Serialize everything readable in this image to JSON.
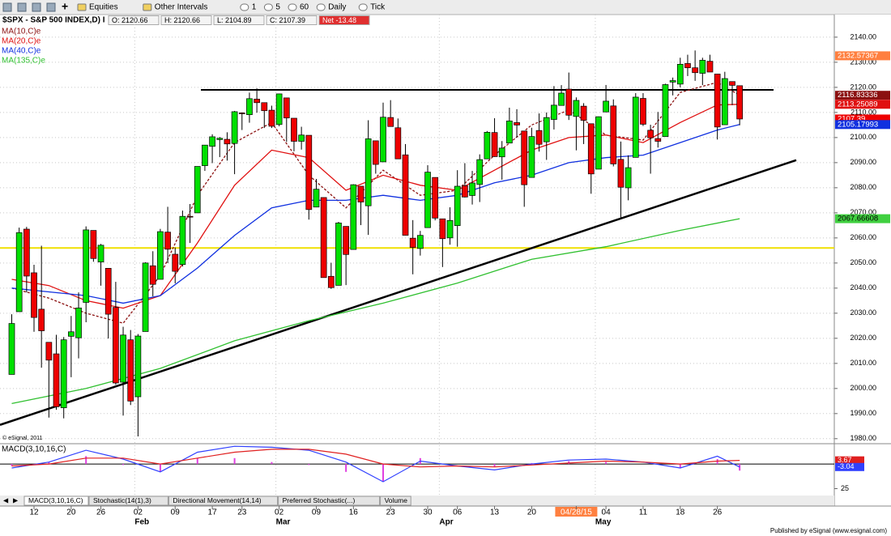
{
  "toolbar": {
    "items": [
      "Equities",
      "Other Intervals",
      "1",
      "5",
      "60",
      "Daily",
      "Tick"
    ]
  },
  "header": {
    "symbol": "$SPX - S&P 500 INDEX,D) I",
    "open": "O: 2120.66",
    "high": "H: 2120.66",
    "low": "L: 2104.89",
    "close": "C: 2107.39",
    "net": "Net -13.48"
  },
  "chart_data": {
    "type": "candlestick",
    "categories": [
      null,
      null,
      null,
      "12",
      null,
      null,
      null,
      null,
      "20",
      null,
      null,
      null,
      "26",
      null,
      null,
      null,
      null,
      "02",
      null,
      null,
      null,
      null,
      "09",
      null,
      null,
      null,
      null,
      "17",
      null,
      null,
      null,
      "23",
      null,
      null,
      null,
      null,
      "02",
      null,
      null,
      null,
      null,
      "09",
      null,
      null,
      null,
      null,
      "16",
      null,
      null,
      null,
      null,
      "23",
      null,
      null,
      null,
      null,
      "30",
      null,
      null,
      null,
      "06",
      null,
      null,
      null,
      null,
      "13",
      null,
      null,
      null,
      null,
      "20",
      null,
      null,
      null,
      null,
      null,
      "04/28/15",
      null,
      null,
      null,
      "04",
      null,
      null,
      null,
      null,
      "11",
      null,
      null,
      null,
      null,
      "18",
      null,
      null,
      null,
      null,
      "26",
      null,
      null,
      null
    ],
    "month_labels": [
      null,
      null,
      null,
      null,
      null,
      null,
      null,
      null,
      null,
      null,
      null,
      null,
      null,
      null,
      null,
      null,
      null,
      "Feb",
      null,
      null,
      null,
      null,
      null,
      null,
      null,
      null,
      null,
      null,
      null,
      null,
      null,
      null,
      null,
      null,
      null,
      null,
      "Mar",
      null,
      null,
      null,
      null,
      null,
      null,
      null,
      null,
      null,
      null,
      null,
      null,
      null,
      null,
      null,
      null,
      null,
      null,
      null,
      null,
      null,
      "Apr",
      null,
      null,
      null,
      null,
      null,
      null,
      null,
      null,
      null,
      null,
      null,
      null,
      null,
      null,
      null,
      null,
      null,
      null,
      null,
      null,
      "May",
      null,
      null,
      null,
      null,
      null,
      null,
      null,
      null,
      null,
      null,
      null,
      null,
      null,
      null,
      null,
      null,
      null,
      null,
      null
    ],
    "open": [
      2005.6,
      2030.6,
      2063.5,
      2046.1,
      2031.6,
      2018.4,
      2013.8,
      1992.3,
      2020.8,
      2020.2,
      2034.3,
      2062.98,
      2050.4,
      2047.9,
      2032.3,
      2002.5,
      2019.4,
      1996.7,
      2022.7,
      2048.9,
      2043.5,
      2062.3,
      2053.5,
      2049.4,
      2068.6,
      2069.98,
      2088.8,
      2096.5,
      2099.2,
      2099.3,
      2097.65,
      2109.8,
      2109.1,
      2115.3,
      2113.9,
      2110.9,
      2105.2,
      2115.8,
      2107.7,
      2098.5,
      2100.9,
      2072.3,
      2076.1,
      2044.7,
      2041.1,
      2064.6,
      2055.4,
      2080.6,
      2072.8,
      2098.7,
      2090.3,
      2107.99,
      2103.9,
      2093.1,
      2059.9,
      2055.8,
      2064.1,
      2084.1,
      2067.6,
      2060.0,
      2064.9,
      2080.8,
      2076.9,
      2081.3,
      2091.5,
      2102.0,
      2092.3,
      2097.8,
      2105.96,
      2102.6,
      2084.1,
      2102.8,
      2098.3,
      2107.2,
      2112.8,
      2119.3,
      2108.4,
      2112.5,
      2105.5,
      2087.4,
      2110.2,
      2112.6,
      2091.3,
      2079.96,
      2092.1,
      2115.6,
      2102.9,
      2099.6,
      2100.4,
      2122.1,
      2121.3,
      2129.5,
      2127.8,
      2125.6,
      2130.4,
      2125.3,
      2105.1,
      2122.3,
      2120.66
    ],
    "high": [
      2029.6,
      2064.1,
      2064.4,
      2049.3,
      2056.9,
      2018.4,
      2021.4,
      2020.5,
      2028.9,
      2038.3,
      2064.6,
      2062.98,
      2057.6,
      2047.9,
      2042.5,
      2024.6,
      2023.3,
      2021.7,
      2050.3,
      2054.7,
      2063.6,
      2072.4,
      2056.2,
      2070.9,
      2073.5,
      2088.5,
      2097.0,
      2101.3,
      2100.2,
      2102.1,
      2110.6,
      2110.05,
      2117.9,
      2119.6,
      2113.9,
      2112.7,
      2117.5,
      2115.8,
      2107.7,
      2104.3,
      2100.9,
      2083.5,
      2076.1,
      2050.1,
      2066.4,
      2064.6,
      2081.4,
      2080.6,
      2106.9,
      2098.7,
      2113.9,
      2114.9,
      2107.6,
      2097.4,
      2067.1,
      2062.8,
      2088.97,
      2084.1,
      2067.6,
      2072.2,
      2086.99,
      2089.8,
      2086.7,
      2093.3,
      2102.6,
      2107.7,
      2098.6,
      2111.9,
      2111.3,
      2102.6,
      2103.9,
      2109.6,
      2109.98,
      2120.5,
      2120.9,
      2125.9,
      2116.0,
      2113.7,
      2105.5,
      2108.4,
      2120.95,
      2115.2,
      2098.4,
      2092.9,
      2117.7,
      2117.7,
      2105.1,
      2110.2,
      2121.45,
      2123.9,
      2131.8,
      2133.0,
      2134.7,
      2131.8,
      2133.0,
      2125.3,
      2126.2,
      2122.3,
      2120.66
    ],
    "low": [
      2005.6,
      2030.6,
      2038.3,
      2022.6,
      2008.3,
      1988.4,
      1991.5,
      1988.1,
      2004.5,
      2012.0,
      2026.4,
      2050.5,
      2040.97,
      2019.9,
      2001.5,
      1989.2,
      1993.4,
      1980.9,
      2022.7,
      2036.7,
      2043.5,
      2049.97,
      2041.9,
      2048.6,
      2057.99,
      2069.98,
      2086.7,
      2089.8,
      2092.2,
      2090.8,
      2085.4,
      2103.0,
      2105.9,
      2109.9,
      2103.8,
      2103.8,
      2104.5,
      2098.3,
      2094.5,
      2095.2,
      2067.3,
      2072.2,
      2044.2,
      2039.7,
      2041.1,
      2041.2,
      2055.4,
      2065.1,
      2061.2,
      2085.6,
      2090.3,
      2104.4,
      2091.5,
      2061.05,
      2045.5,
      2052.96,
      2064.1,
      2067.0,
      2048.4,
      2057.3,
      2056.5,
      2076.1,
      2073.3,
      2074.3,
      2091.5,
      2092.3,
      2083.2,
      2097.8,
      2100.0,
      2072.4,
      2084.1,
      2094.4,
      2091.1,
      2103.2,
      2112.8,
      2107.0,
      2094.9,
      2097.4,
      2077.6,
      2087.4,
      2110.2,
      2088.5,
      2067.9,
      2074.99,
      2092.1,
      2104.6,
      2085.6,
      2096.0,
      2100.4,
      2116.8,
      2120.0,
      2124.5,
      2122.6,
      2120.9,
      2126.1,
      2099.2,
      2105.1,
      2112.9,
      2104.89
    ],
    "close": [
      2025.9,
      2062.1,
      2044.8,
      2028.3,
      2023.0,
      2011.3,
      1992.7,
      2019.4,
      2022.6,
      2032.1,
      2063.2,
      2051.8,
      2057.1,
      2029.6,
      2002.2,
      2021.3,
      1994.99,
      2020.9,
      2050.0,
      2041.5,
      2062.5,
      2055.5,
      2046.7,
      2068.6,
      2068.5,
      2088.5,
      2096.99,
      2100.3,
      2099.7,
      2097.45,
      2110.3,
      2109.7,
      2115.5,
      2113.9,
      2110.7,
      2104.5,
      2117.4,
      2107.8,
      2098.5,
      2101.0,
      2071.3,
      2079.4,
      2044.2,
      2040.2,
      2065.95,
      2053.4,
      2081.2,
      2074.3,
      2099.5,
      2089.3,
      2108.1,
      2104.4,
      2091.5,
      2061.05,
      2056.2,
      2061.02,
      2086.2,
      2067.9,
      2059.7,
      2066.96,
      2080.6,
      2076.3,
      2081.9,
      2091.2,
      2102.1,
      2092.4,
      2095.8,
      2106.6,
      2104.99,
      2081.2,
      2100.4,
      2097.3,
      2107.96,
      2112.9,
      2117.7,
      2108.9,
      2114.8,
      2106.85,
      2085.5,
      2108.3,
      2114.5,
      2089.5,
      2080.2,
      2088.0,
      2116.1,
      2105.3,
      2099.9,
      2098.5,
      2121.1,
      2122.7,
      2129.2,
      2127.8,
      2125.85,
      2130.8,
      2126.1,
      2104.2,
      2123.5,
      2120.8,
      2107.39
    ],
    "up_color": "#00e000",
    "down_color": "#ee0000",
    "ylim": [
      1978,
      2149
    ],
    "yticks": [
      {
        "value": 1980,
        "label": "1980.00"
      },
      {
        "value": 1990,
        "label": "1990.00"
      },
      {
        "value": 2000,
        "label": "2000.00"
      },
      {
        "value": 2010,
        "label": "2010.00"
      },
      {
        "value": 2020,
        "label": "2020.00"
      },
      {
        "value": 2030,
        "label": "2030.00"
      },
      {
        "value": 2040,
        "label": "2040.00"
      },
      {
        "value": 2050,
        "label": "2050.00"
      },
      {
        "value": 2060,
        "label": "2060.00"
      },
      {
        "value": 2070,
        "label": "2070.00"
      },
      {
        "value": 2080,
        "label": "2080.00"
      },
      {
        "value": 2090,
        "label": "2090.00"
      },
      {
        "value": 2100,
        "label": "2100.00"
      },
      {
        "value": 2110,
        "label": "2110.00"
      },
      {
        "value": 2120,
        "label": "2120.00"
      },
      {
        "value": 2130,
        "label": "2130.00"
      },
      {
        "value": 2140,
        "label": "2140.00"
      }
    ],
    "grid": true,
    "moving_averages": [
      {
        "name": "MA(10,C)e",
        "color": "#8b1010",
        "dashed": true,
        "x": [
          0,
          5,
          10,
          15,
          20,
          25,
          30,
          35,
          40,
          45,
          50,
          55,
          60,
          65,
          70,
          75,
          80,
          85,
          90,
          95,
          98
        ],
        "values": [
          2040,
          2036,
          2030,
          2026,
          2045,
          2077,
          2098,
          2106,
          2085,
          2072,
          2087,
          2077,
          2079,
          2093,
          2105,
          2111,
          2101,
          2099,
          2118,
          2122,
          2116.83336
        ]
      },
      {
        "name": "MA(20,C)e",
        "color": "#e01010",
        "dashed": false,
        "x": [
          0,
          5,
          10,
          15,
          20,
          25,
          30,
          35,
          40,
          45,
          50,
          55,
          60,
          65,
          70,
          75,
          80,
          85,
          90,
          95,
          98
        ],
        "values": [
          2043.5,
          2041,
          2035,
          2032,
          2037,
          2058,
          2081,
          2095,
          2092,
          2079,
          2085,
          2081,
          2079,
          2087,
          2095,
          2100,
          2101,
          2098,
          2106,
          2113,
          2113.25089
        ]
      },
      {
        "name": "MA(40,C)e",
        "color": "#1030e0",
        "dashed": false,
        "x": [
          0,
          5,
          10,
          15,
          20,
          25,
          30,
          35,
          40,
          45,
          50,
          55,
          60,
          65,
          70,
          75,
          80,
          85,
          90,
          95,
          98
        ],
        "values": [
          2040,
          2038.5,
          2037,
          2034,
          2037,
          2048,
          2061,
          2072,
          2075,
          2075,
          2077,
          2075,
          2077,
          2082,
          2085,
          2090,
          2092,
          2093,
          2098,
          2103,
          2105.17993
        ]
      },
      {
        "name": "MA(135,C)e",
        "color": "#30c030",
        "dashed": false,
        "x": [
          0,
          10,
          20,
          30,
          40,
          50,
          60,
          70,
          80,
          90,
          98
        ],
        "values": [
          1994,
          2000,
          2008,
          2019,
          2027,
          2034,
          2042,
          2051.5,
          2056.5,
          2063,
          2067.66608
        ]
      }
    ],
    "price_labels": [
      {
        "value": 2132.57367,
        "color": "#ff7f3f",
        "text_color": "#ffffff"
      },
      {
        "value": 2116.83336,
        "color": "#8b1010",
        "text_color": "#ffffff"
      },
      {
        "value": 2113.25089,
        "color": "#e01010",
        "text_color": "#ffffff"
      },
      {
        "value": 2107.39,
        "color": "#ee0000",
        "text_color": "#ffffff"
      },
      {
        "value": 2105.17993,
        "color": "#1030e0",
        "text_color": "#ffffff"
      },
      {
        "value": 2067.66608,
        "color": "#40d040",
        "text_color": "#000000"
      }
    ],
    "resistance": {
      "value": 2119,
      "color": "#000000"
    },
    "support": {
      "value": 2056,
      "color": "#f0e000"
    },
    "trendline": {
      "values": [
        1985.5,
        2091
      ],
      "color": "#000000"
    },
    "watermark": "© eSignal, 2011"
  },
  "indicator": {
    "name": "MACD(3,10,16,C)",
    "x": [
      0,
      5,
      10,
      15,
      20,
      25,
      30,
      35,
      40,
      45,
      50,
      55,
      60,
      65,
      70,
      75,
      80,
      85,
      90,
      95,
      98
    ],
    "macd": [
      -4,
      2,
      14,
      5,
      -8,
      12,
      18,
      17,
      14,
      2,
      -18,
      3,
      -2,
      -6,
      0,
      4,
      5,
      2,
      -4,
      8,
      -3.04
    ],
    "signal": [
      -2,
      0,
      6,
      6,
      0,
      6,
      12,
      15,
      15,
      10,
      0,
      -3,
      -2,
      -3,
      -1,
      1,
      3,
      2,
      0,
      3,
      3.67
    ],
    "histogram": [
      -2,
      2,
      8,
      -1,
      -8,
      6,
      6,
      2,
      -1,
      -8,
      -18,
      6,
      0,
      -3,
      1,
      3,
      2,
      0,
      -4,
      5,
      -6.71
    ],
    "macd_color": "#3040ff",
    "signal_color": "#e02020",
    "histogram_color": "#e040e0",
    "ylim": [
      -32,
      19
    ],
    "yticks": [
      {
        "value": -25,
        "label": "25"
      }
    ],
    "last_labels": [
      {
        "value": 3.67,
        "color": "#e02020"
      },
      {
        "value": -3.04,
        "color": "#3040ff"
      }
    ]
  },
  "tabs": [
    "MACD(3,10,16,C)",
    "Stochastic(14(1),3)",
    "Directional Movement(14,14)",
    "Preferred Stochastic(...)",
    "Volume"
  ],
  "footer": "Published by eSignal (www.esignal.com)"
}
